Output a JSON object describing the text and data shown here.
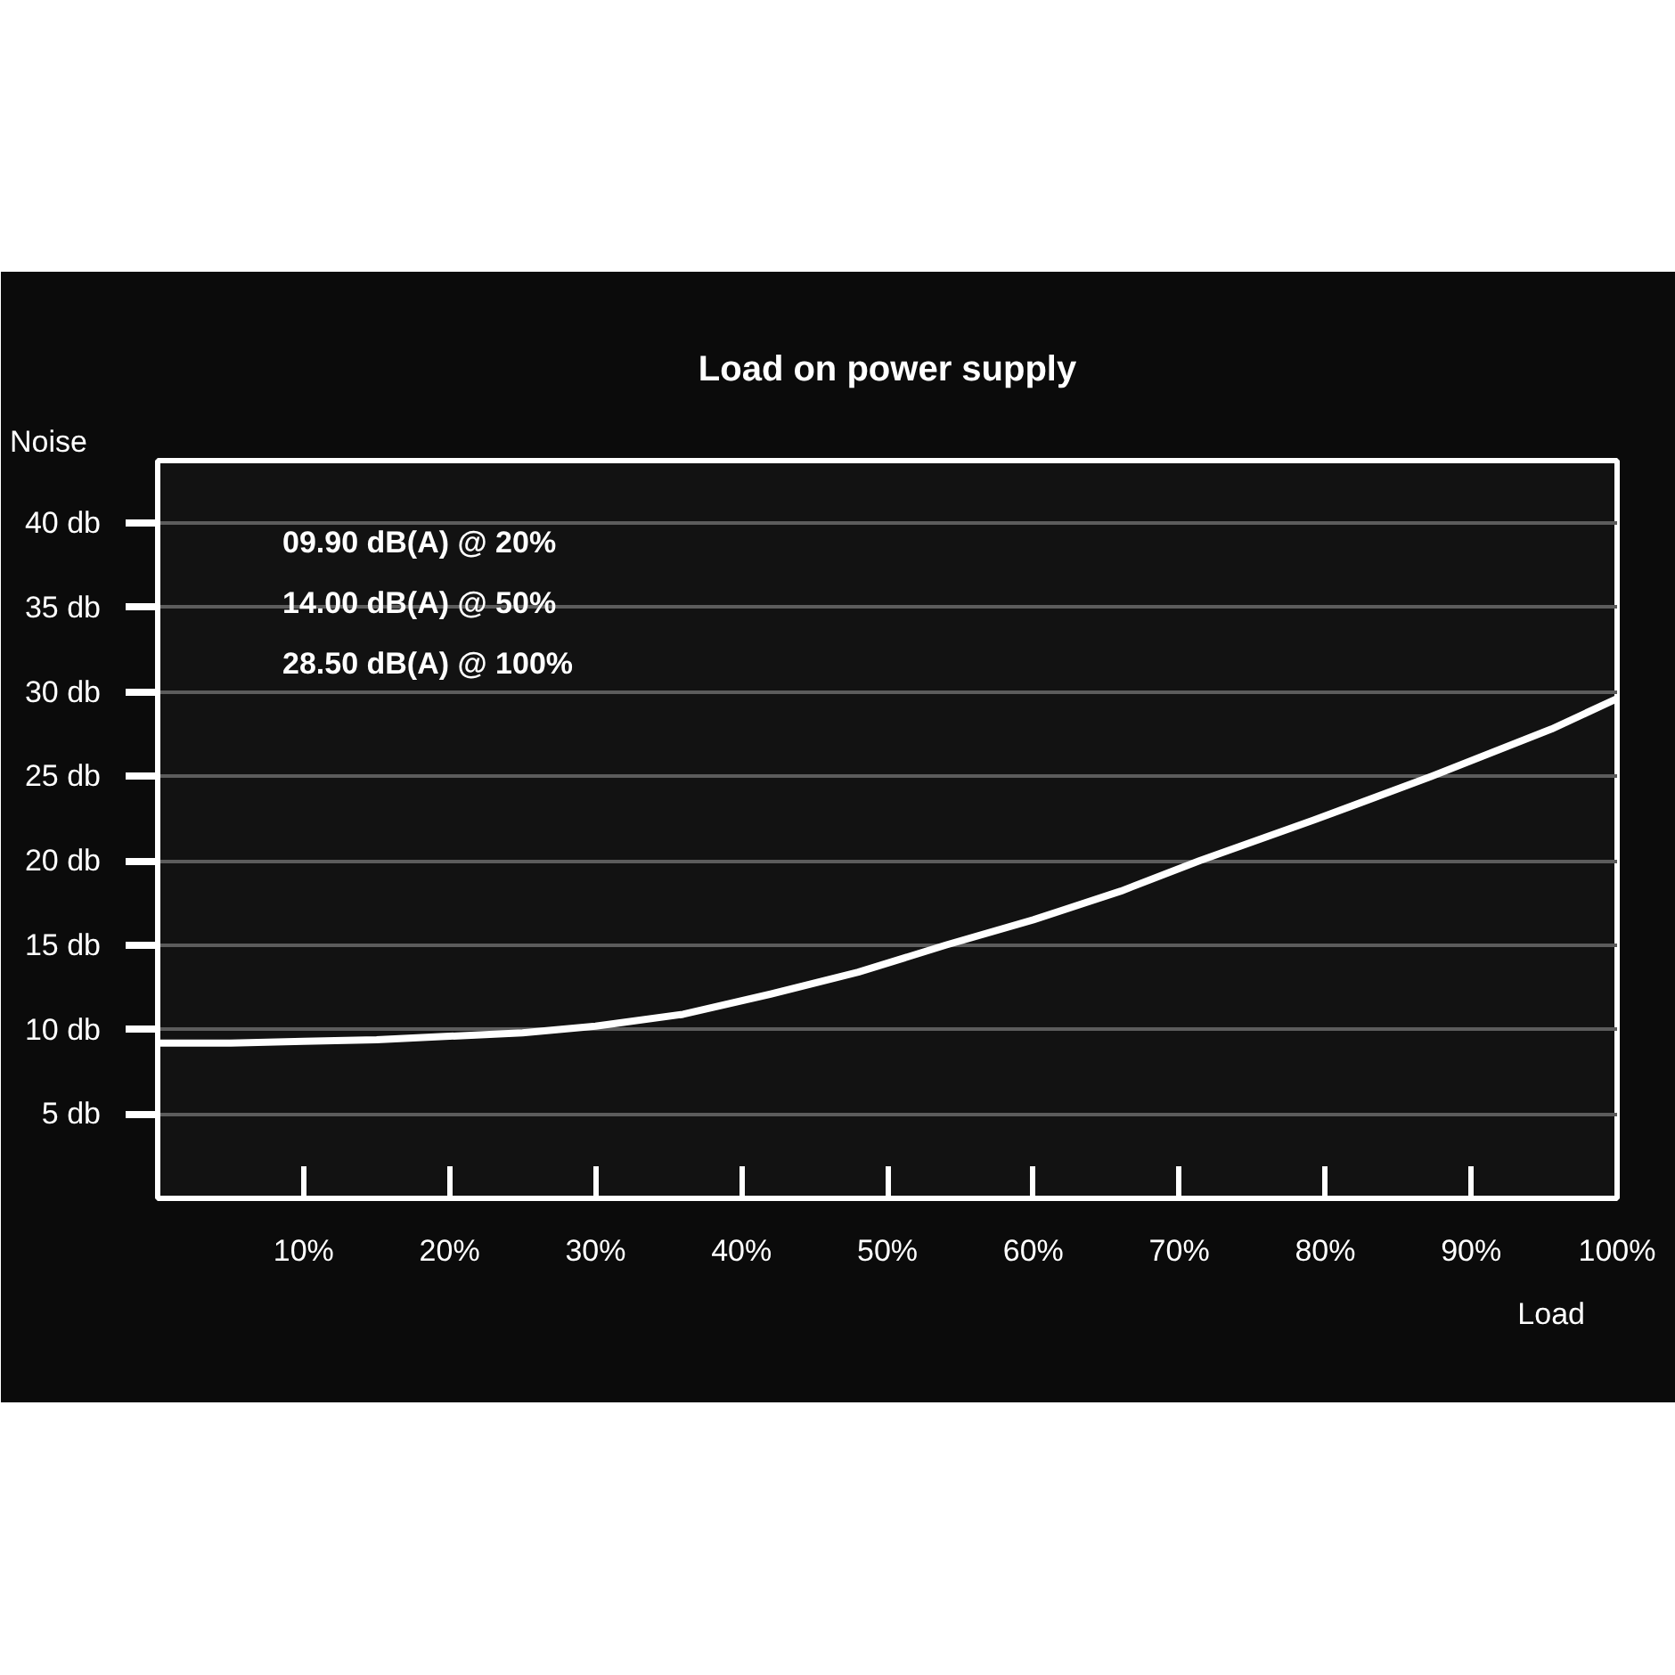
{
  "chart_data": {
    "type": "line",
    "title": "Load on power supply",
    "xlabel": "Load",
    "ylabel": "Noise",
    "annotations": [
      "09.90 dB(A) @ 20%",
      "14.00 dB(A) @ 50%",
      "28.50 dB(A) @ 100%"
    ],
    "x": [
      0,
      5,
      10,
      15,
      20,
      25,
      30,
      36,
      42,
      48,
      54,
      60,
      66,
      71.4,
      79.2,
      87.3,
      95.5,
      100
    ],
    "series": [
      {
        "color": "#ffffff",
        "values": [
          9.2,
          9.2,
          9.3,
          9.4,
          9.6,
          9.8,
          10.2,
          10.9,
          12.1,
          13.4,
          15.0,
          16.5,
          18.2,
          20.0,
          22.4,
          25.0,
          27.8,
          29.6
        ]
      }
    ],
    "xlim": [
      0,
      100
    ],
    "ylim": [
      0,
      43.7
    ],
    "xticks": [
      {
        "value": 10,
        "label": "10%"
      },
      {
        "value": 20,
        "label": "20%"
      },
      {
        "value": 30,
        "label": "30%"
      },
      {
        "value": 40,
        "label": "40%"
      },
      {
        "value": 50,
        "label": "50%"
      },
      {
        "value": 60,
        "label": "60%"
      },
      {
        "value": 70,
        "label": "70%"
      },
      {
        "value": 80,
        "label": "80%"
      },
      {
        "value": 90,
        "label": "90%"
      },
      {
        "value": 100,
        "label": "100%"
      }
    ],
    "yticks": [
      {
        "value": 5,
        "label": "5 db"
      },
      {
        "value": 10,
        "label": "10 db"
      },
      {
        "value": 15,
        "label": "15 db"
      },
      {
        "value": 20,
        "label": "20 db"
      },
      {
        "value": 25,
        "label": "25 db"
      },
      {
        "value": 30,
        "label": "30 db"
      },
      {
        "value": 35,
        "label": "35 db"
      },
      {
        "value": 40,
        "label": "40 db"
      }
    ],
    "grid": "y",
    "line_style": "solid"
  }
}
